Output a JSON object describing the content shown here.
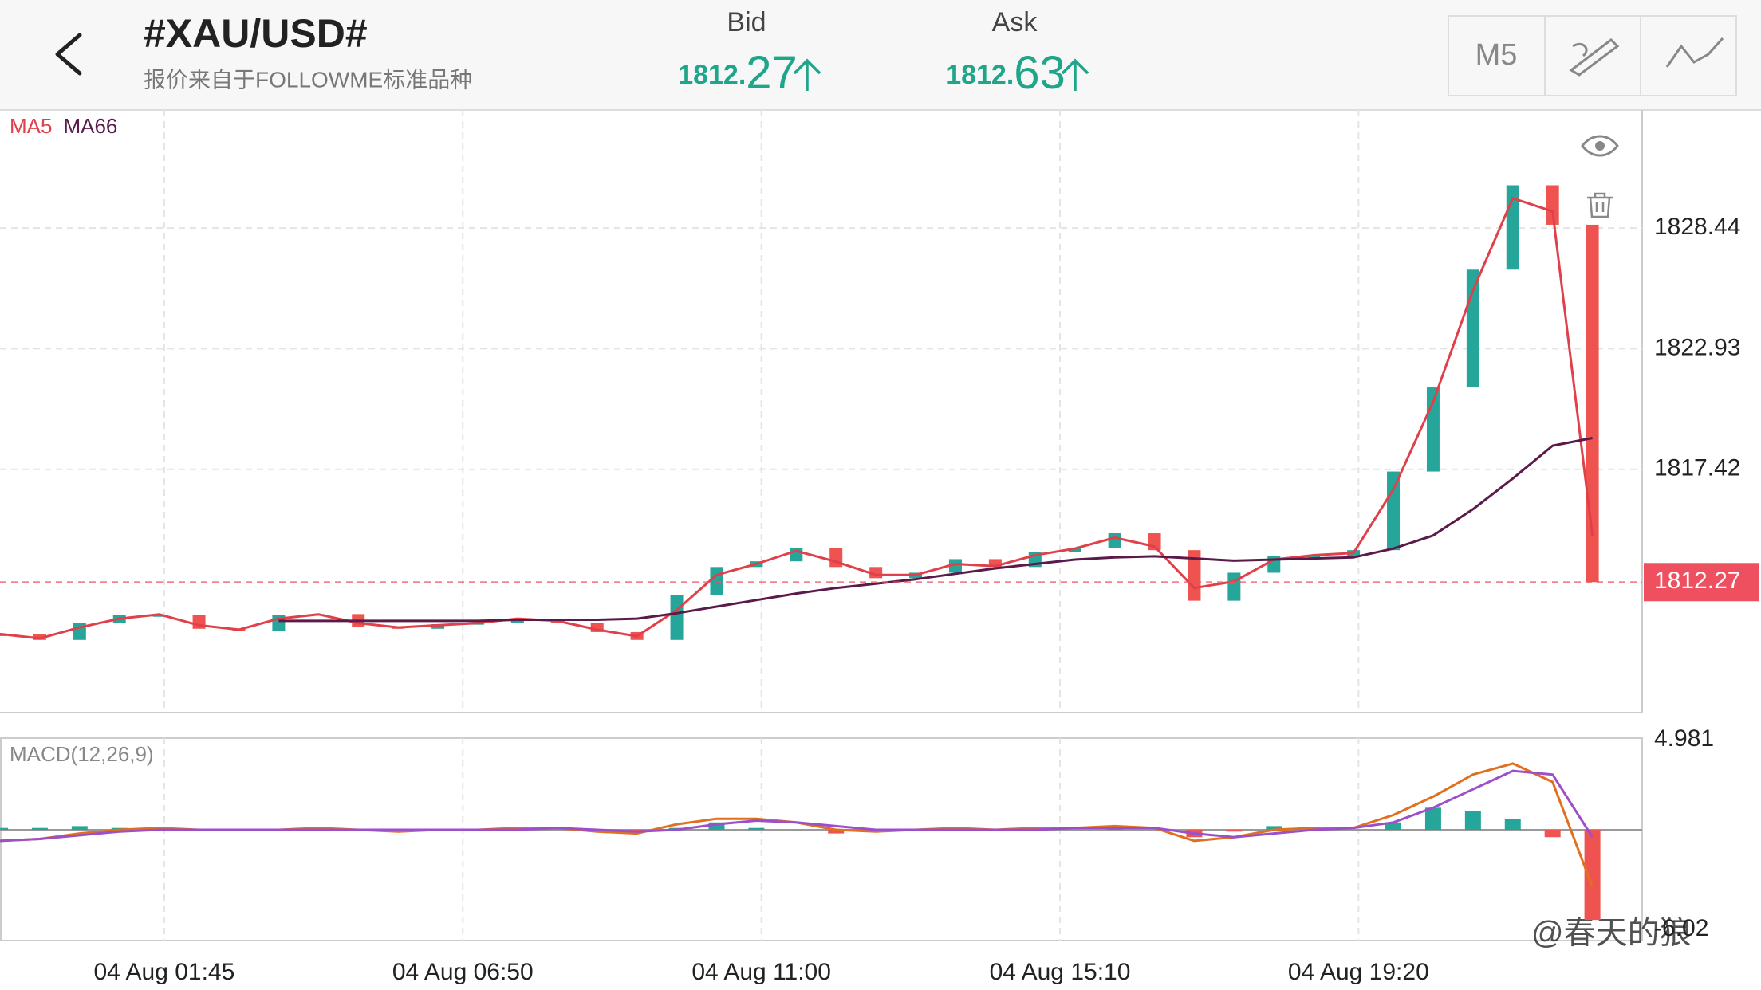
{
  "header": {
    "title": "#XAU/USD#",
    "subtitle": "报价来自于FOLLOWME标准品种",
    "bid": {
      "label": "Bid",
      "value": 1812.27
    },
    "ask": {
      "label": "Ask",
      "value": 1812.63
    },
    "timeframe": "M5"
  },
  "watermark": "@春天的狼",
  "chart_data": [
    {
      "type": "candlestick",
      "grid": true,
      "x": [
        -33,
        -25,
        -17,
        -9,
        -1,
        7,
        15,
        23,
        31,
        39,
        47,
        55,
        63,
        71,
        79,
        87,
        95,
        103,
        111,
        119,
        127,
        135,
        143,
        151,
        159,
        167,
        175,
        183,
        191,
        199,
        207,
        215,
        223,
        231,
        239,
        247,
        255,
        263,
        271,
        279,
        287
      ],
      "xlim": [
        -33,
        297
      ],
      "xticks": [
        {
          "value": 0,
          "label": "04 Aug 01:45"
        },
        {
          "value": 60,
          "label": "04 Aug 06:50"
        },
        {
          "value": 120,
          "label": "04 Aug 11:00"
        },
        {
          "value": 180,
          "label": "04 Aug 15:10"
        },
        {
          "value": 240,
          "label": "04 Aug 19:20"
        }
      ],
      "ylim": [
        1806.31,
        1833.83
      ],
      "yticks": [
        1817.42,
        1822.93,
        1828.44
      ],
      "up_color": "#26a69a",
      "down_color": "#ef5350",
      "values": [
        1809.88,
        1809.63,
        1810.4,
        1810.76,
        1810.76,
        1810.14,
        1810.04,
        1810.76,
        1810.81,
        1810.24,
        1810.14,
        1810.35,
        1810.4,
        1810.6,
        1810.4,
        1809.99,
        1809.63,
        1811.68,
        1812.96,
        1813.22,
        1813.83,
        1812.96,
        1812.45,
        1812.7,
        1813.32,
        1812.96,
        1813.63,
        1813.83,
        1814.5,
        1813.73,
        1811.42,
        1812.7,
        1813.47,
        1813.47,
        1813.73,
        1817.32,
        1821.16,
        1826.54,
        1830.39,
        1828.59,
        1812.27
      ],
      "last_price": 1812.27,
      "last_price_color": "#ef5060",
      "series": [
        {
          "name": "MA5",
          "color": "#e0404a",
          "values": [
            1809.9,
            1809.7,
            1810.2,
            1810.6,
            1810.8,
            1810.3,
            1810.1,
            1810.6,
            1810.8,
            1810.4,
            1810.2,
            1810.3,
            1810.4,
            1810.6,
            1810.5,
            1810.1,
            1809.8,
            1811.0,
            1812.6,
            1813.1,
            1813.7,
            1813.2,
            1812.6,
            1812.6,
            1813.1,
            1813.0,
            1813.5,
            1813.8,
            1814.3,
            1813.9,
            1812.0,
            1812.3,
            1813.3,
            1813.5,
            1813.6,
            1816.5,
            1820.5,
            1825.6,
            1829.8,
            1829.2,
            1814.4
          ]
        },
        {
          "name": "MA66",
          "color": "#5a1a4a",
          "values": [
            null,
            null,
            null,
            null,
            null,
            null,
            null,
            1810.5,
            1810.5,
            1810.5,
            1810.5,
            1810.5,
            1810.5,
            1810.55,
            1810.55,
            1810.55,
            1810.6,
            1810.85,
            1811.15,
            1811.45,
            1811.75,
            1812.0,
            1812.2,
            1812.4,
            1812.65,
            1812.9,
            1813.1,
            1813.3,
            1813.4,
            1813.45,
            1813.35,
            1813.25,
            1813.3,
            1813.35,
            1813.4,
            1813.8,
            1814.4,
            1815.6,
            1817.0,
            1818.5,
            1818.85
          ]
        }
      ]
    },
    {
      "type": "macd",
      "title": "MACD(12,26,9)",
      "ylim": [
        -6.02,
        4.981
      ],
      "yticks": [
        -6.02,
        4.981
      ],
      "histogram": [
        0.1,
        0.1,
        0.2,
        0.1,
        0.0,
        0.0,
        0.0,
        0.0,
        0.0,
        0.0,
        0.0,
        0.0,
        0.0,
        0.0,
        0.0,
        -0.1,
        -0.1,
        0.1,
        0.4,
        0.1,
        0.0,
        -0.2,
        -0.1,
        0.0,
        0.1,
        0.0,
        0.0,
        0.0,
        0.1,
        0.0,
        -0.4,
        -0.1,
        0.2,
        0.1,
        0.0,
        0.4,
        1.2,
        1.0,
        0.6,
        -0.4,
        -4.9
      ],
      "series": [
        {
          "color": "#e07020",
          "values": [
            -0.6,
            -0.5,
            -0.2,
            0.0,
            0.1,
            0.0,
            0.0,
            0.0,
            0.1,
            0.0,
            -0.1,
            0.0,
            0.0,
            0.1,
            0.1,
            -0.1,
            -0.2,
            0.3,
            0.6,
            0.6,
            0.4,
            0.0,
            -0.1,
            0.0,
            0.1,
            0.0,
            0.1,
            0.1,
            0.2,
            0.1,
            -0.6,
            -0.4,
            0.0,
            0.1,
            0.1,
            0.8,
            1.8,
            3.0,
            3.6,
            2.6,
            -3.1
          ]
        },
        {
          "color": "#9c4fc9",
          "values": [
            -0.6,
            -0.5,
            -0.3,
            -0.1,
            0.0,
            0.0,
            0.0,
            0.0,
            0.0,
            0.0,
            0.0,
            0.0,
            0.0,
            0.0,
            0.1,
            0.0,
            -0.1,
            0.0,
            0.3,
            0.5,
            0.4,
            0.2,
            0.0,
            0.0,
            0.0,
            0.0,
            0.0,
            0.1,
            0.1,
            0.1,
            -0.2,
            -0.4,
            -0.2,
            0.0,
            0.1,
            0.4,
            1.2,
            2.2,
            3.2,
            3.0,
            -0.4
          ]
        }
      ]
    }
  ]
}
